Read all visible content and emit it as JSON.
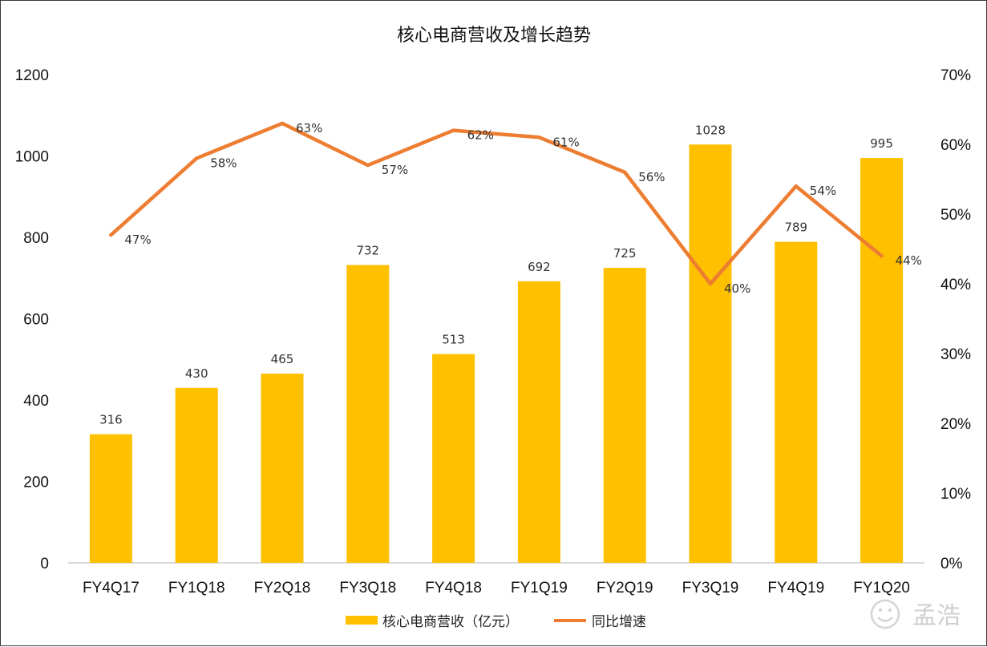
{
  "colors": {
    "bar": "#FFC000",
    "line": "#ED7D31",
    "axis": "#cccccc",
    "watermark": "#d0d0d0"
  },
  "watermark": {
    "icon": "smiley-stamp-icon",
    "text": "孟浩"
  },
  "chart_data": {
    "type": "bar",
    "title": "核心电商营收及增长趋势",
    "categories": [
      "FY4Q17",
      "FY1Q18",
      "FY2Q18",
      "FY3Q18",
      "FY4Q18",
      "FY1Q19",
      "FY2Q19",
      "FY3Q19",
      "FY4Q19",
      "FY1Q20"
    ],
    "series": [
      {
        "name": "核心电商营收（亿元）",
        "type": "bar",
        "axis": "left",
        "values": [
          316,
          430,
          465,
          732,
          513,
          692,
          725,
          1028,
          789,
          995
        ],
        "labels": [
          "316",
          "430",
          "465",
          "732",
          "513",
          "692",
          "725",
          "1028",
          "789",
          "995"
        ]
      },
      {
        "name": "同比增速",
        "type": "line",
        "axis": "right",
        "values": [
          47,
          58,
          63,
          57,
          62,
          61,
          56,
          40,
          54,
          44
        ],
        "labels": [
          "47%",
          "58%",
          "63%",
          "57%",
          "62%",
          "61%",
          "56%",
          "40%",
          "54%",
          "44%"
        ]
      }
    ],
    "y_left": {
      "lim": [
        0,
        1200
      ],
      "ticks": [
        "0",
        "200",
        "400",
        "600",
        "800",
        "1000",
        "1200"
      ]
    },
    "y_right": {
      "lim": [
        0,
        70
      ],
      "ticks": [
        "0%",
        "10%",
        "20%",
        "30%",
        "40%",
        "50%",
        "60%",
        "70%"
      ]
    },
    "grid": false,
    "legend": "bottom"
  }
}
